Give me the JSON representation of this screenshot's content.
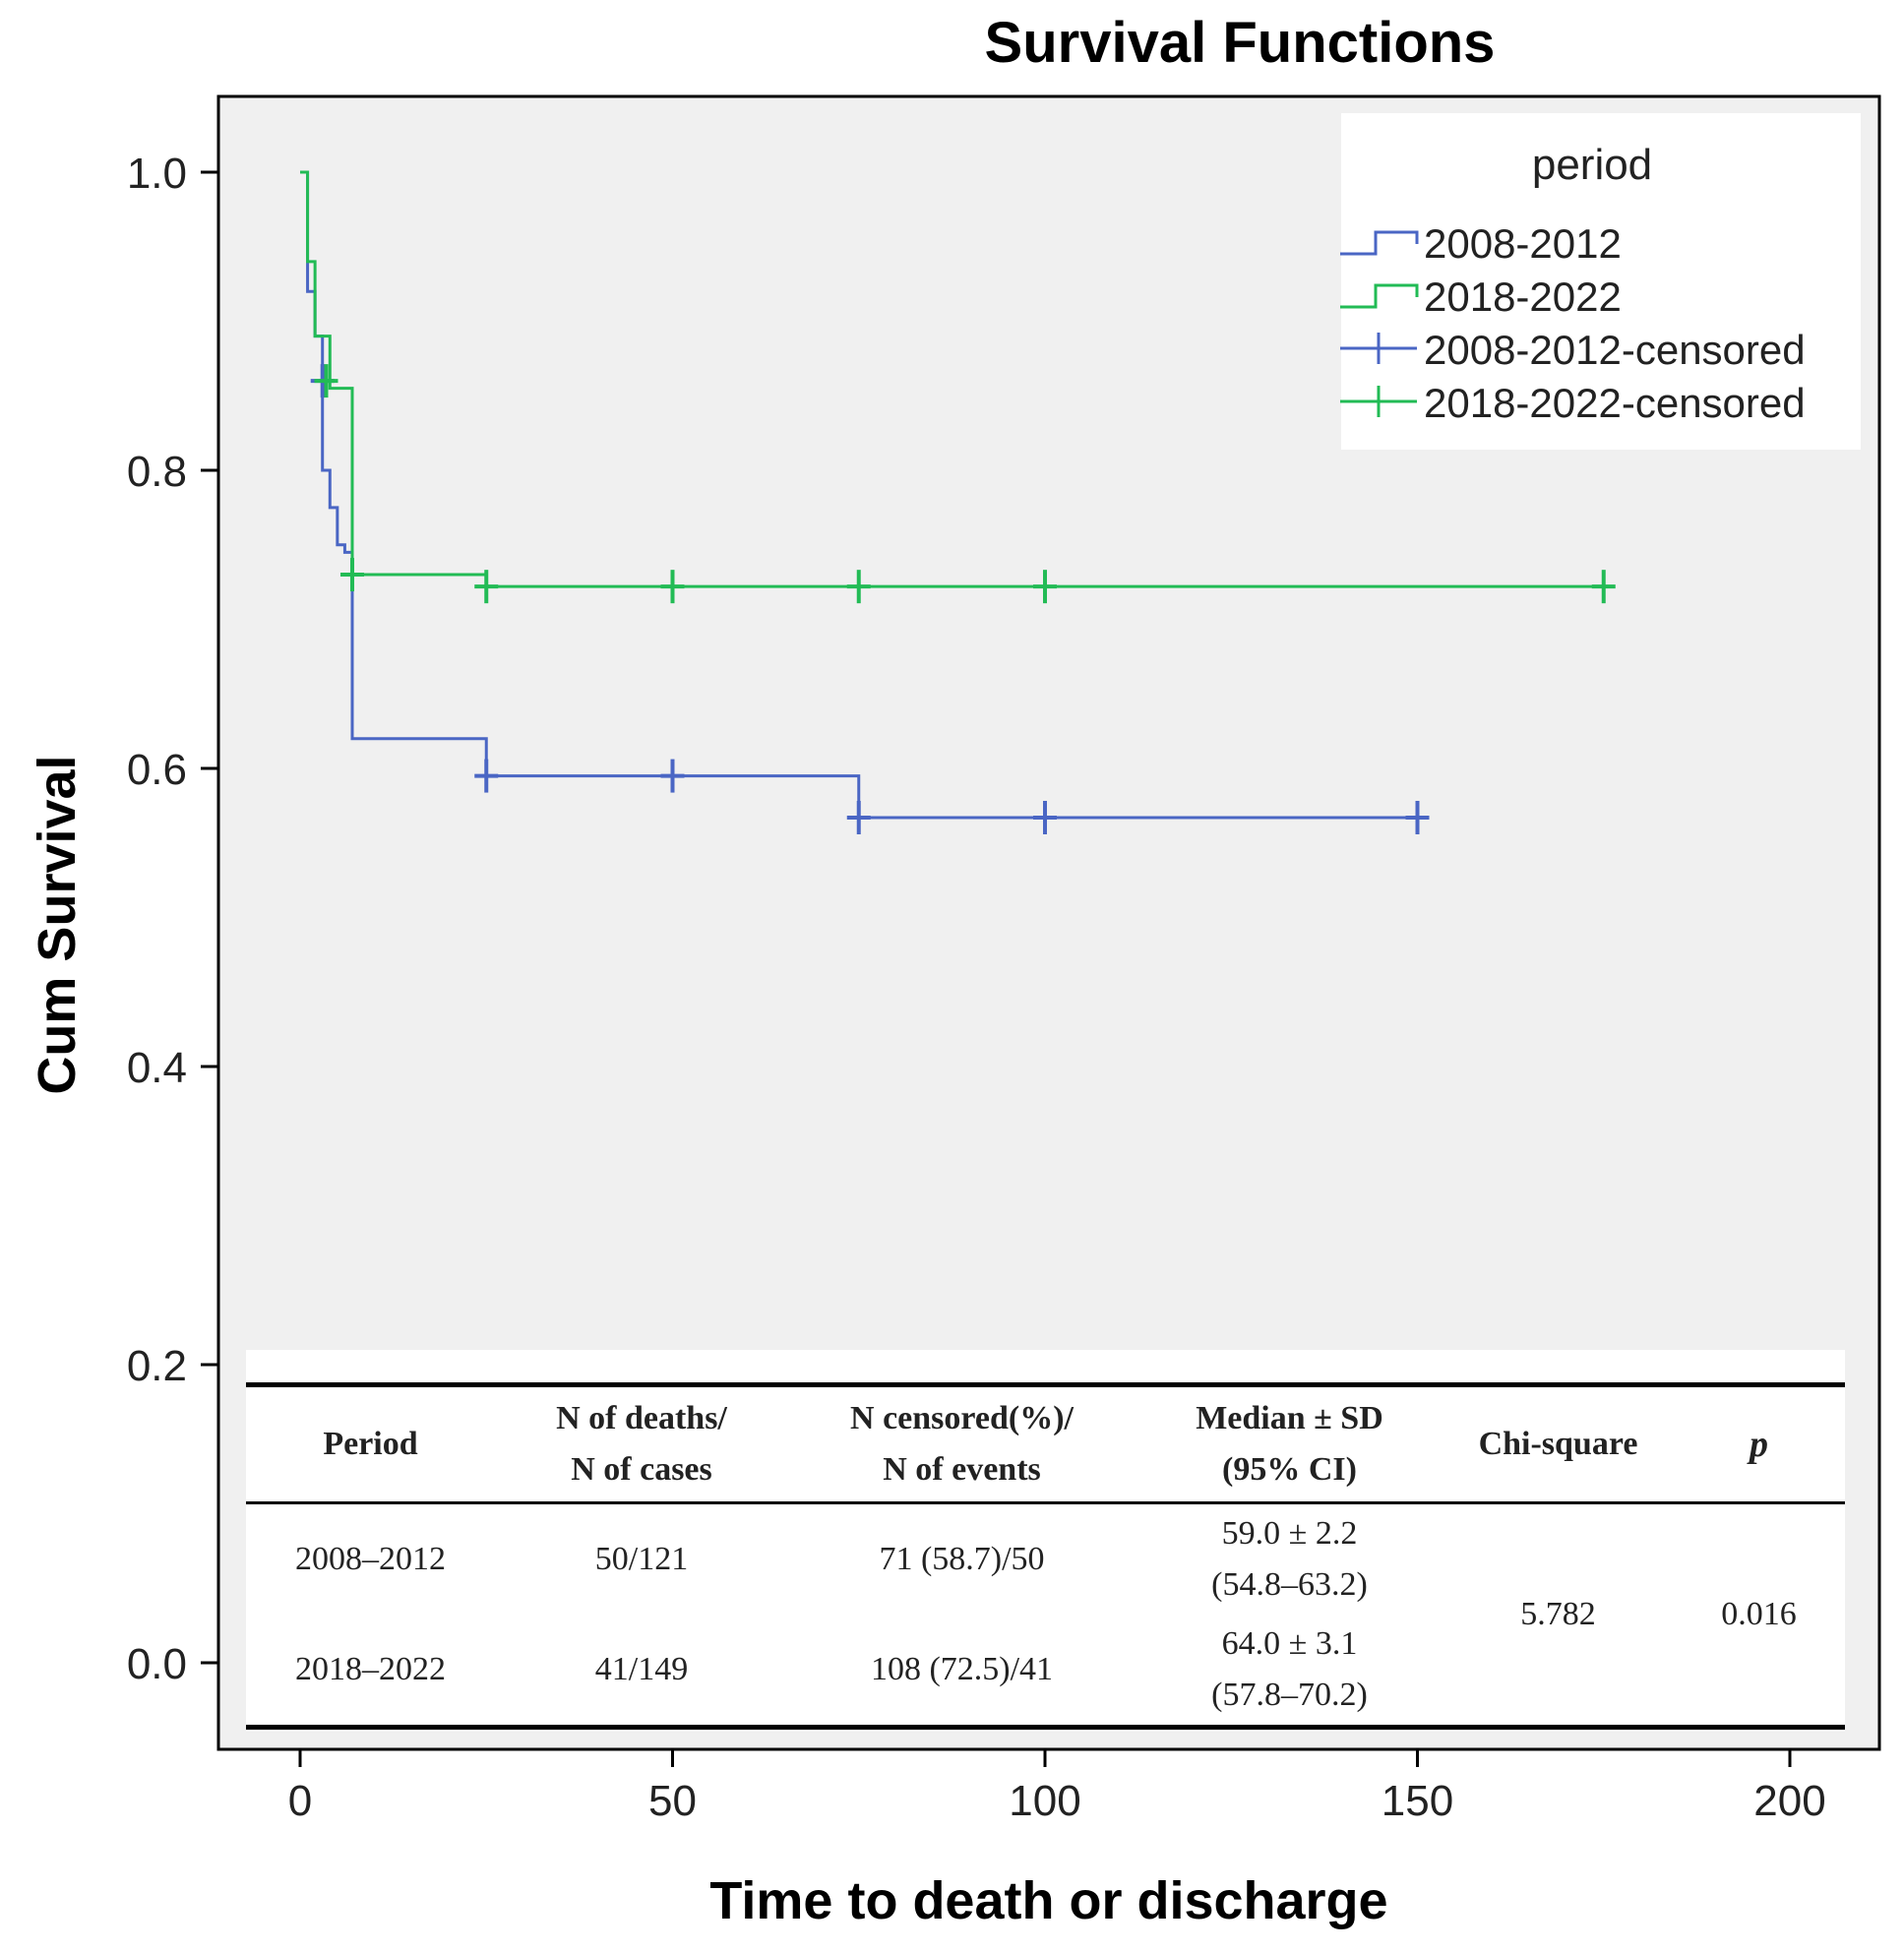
{
  "chart_data": {
    "type": "line",
    "subtype": "kaplan-meier-step",
    "title": "Survival Functions",
    "xlabel": "Time to death or discharge",
    "ylabel": "Cum Survival",
    "xlim": [
      -5,
      212
    ],
    "ylim": [
      -0.06,
      1.06
    ],
    "x_ticks": [
      0,
      50,
      100,
      150,
      200
    ],
    "x_tick_labels": [
      "0",
      "50",
      "100",
      "150",
      "200"
    ],
    "y_ticks": [
      0.0,
      0.2,
      0.4,
      0.6,
      0.8,
      1.0
    ],
    "y_tick_labels": [
      "0.0",
      "0.2",
      "0.4",
      "0.6",
      "0.8",
      "1.0"
    ],
    "legend": {
      "title": "period",
      "position": "top-right",
      "entries": [
        "2008-2012",
        "2018-2022",
        "2008-2012-censored",
        "2018-2022-censored"
      ]
    },
    "series": [
      {
        "name": "2008-2012",
        "color": "#4a66c4",
        "steps": [
          [
            0,
            1.0
          ],
          [
            1,
            0.92
          ],
          [
            2,
            0.89
          ],
          [
            3,
            0.8
          ],
          [
            4,
            0.775
          ],
          [
            5,
            0.75
          ],
          [
            6,
            0.745
          ],
          [
            7,
            0.62
          ],
          [
            25,
            0.595
          ],
          [
            75,
            0.567
          ],
          [
            150,
            0.567
          ]
        ],
        "censored": [
          [
            3,
            0.86
          ],
          [
            25,
            0.595
          ],
          [
            50,
            0.595
          ],
          [
            75,
            0.567
          ],
          [
            100,
            0.567
          ],
          [
            150,
            0.567
          ]
        ]
      },
      {
        "name": "2018-2022",
        "color": "#22bb55",
        "steps": [
          [
            0,
            1.0
          ],
          [
            1,
            0.94
          ],
          [
            2,
            0.89
          ],
          [
            4,
            0.855
          ],
          [
            7,
            0.73
          ],
          [
            25,
            0.722
          ],
          [
            175,
            0.722
          ]
        ],
        "censored": [
          [
            3.5,
            0.86
          ],
          [
            7,
            0.73
          ],
          [
            25,
            0.722
          ],
          [
            50,
            0.722
          ],
          [
            75,
            0.722
          ],
          [
            100,
            0.722
          ],
          [
            175,
            0.722
          ]
        ]
      }
    ]
  },
  "stats_table": {
    "headers": {
      "period": "Period",
      "deaths_line1": "N of deaths/",
      "deaths_line2": "N of cases",
      "censored_line1": "N censored(%)/",
      "censored_line2": "N of events",
      "median_line1": "Median ± SD",
      "median_line2": "(95% CI)",
      "chi": "Chi-square",
      "p": "p"
    },
    "rows": [
      {
        "period": "2008–2012",
        "deaths": "50/121",
        "censored": "71 (58.7)/50",
        "median": "59.0 ± 2.2",
        "ci": "(54.8–63.2)"
      },
      {
        "period": "2018–2022",
        "deaths": "41/149",
        "censored": "108 (72.5)/41",
        "median": "64.0 ± 3.1",
        "ci": "(57.8–70.2)"
      }
    ],
    "chi_square": "5.782",
    "p_value": "0.016"
  }
}
